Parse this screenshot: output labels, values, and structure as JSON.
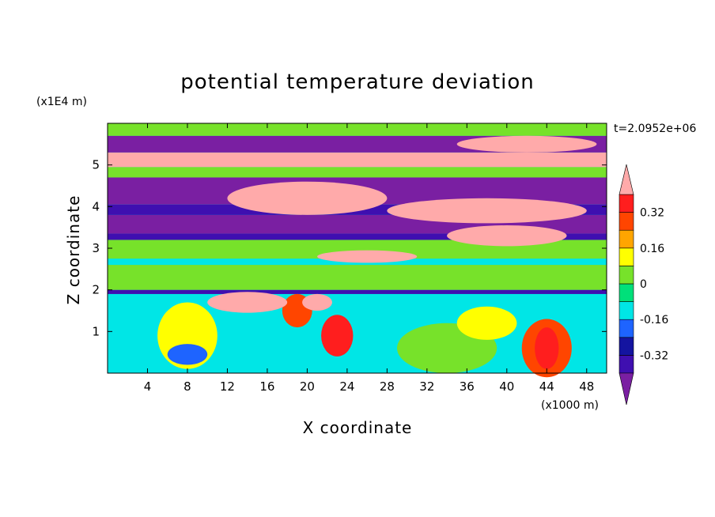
{
  "chart_data": {
    "type": "heatmap",
    "title": "potential temperature deviation",
    "time_label": "t=2.0952e+06",
    "xlabel": "X coordinate",
    "x_unit": "(x1000 m)",
    "ylabel": "Z coordinate",
    "y_unit": "(x1E4 m)",
    "xlim": [
      0,
      50
    ],
    "ylim": [
      0,
      6
    ],
    "x_ticks": [
      4,
      8,
      12,
      16,
      20,
      24,
      28,
      32,
      36,
      40,
      44,
      48
    ],
    "y_ticks": [
      1,
      2,
      3,
      4,
      5
    ],
    "colorbar": {
      "levels": [
        -0.4,
        -0.32,
        -0.24,
        -0.16,
        -0.08,
        0,
        0.08,
        0.16,
        0.24,
        0.32,
        0.4
      ],
      "tick_labels": [
        "0.32",
        "0.16",
        "0",
        "-0.16",
        "-0.32"
      ],
      "tick_values": [
        0.32,
        0.16,
        0,
        -0.16,
        -0.32
      ],
      "extend": "both",
      "colors": [
        "#7a1fa2",
        "#3f0fb0",
        "#1414a0",
        "#1e64ff",
        "#00e6e6",
        "#00e07a",
        "#77e22a",
        "#ffff00",
        "#ffa500",
        "#ff4500",
        "#ff1e1e",
        "#ffaaaa"
      ],
      "under_color": "#7a1fa2",
      "over_color": "#ffaaaa"
    },
    "background_value": -0.12,
    "bands": [
      {
        "z": [
          0.0,
          1.9
        ],
        "value": -0.12
      },
      {
        "z": [
          1.9,
          2.0
        ],
        "value": -0.36
      },
      {
        "z": [
          2.0,
          2.6
        ],
        "value": 0.06
      },
      {
        "z": [
          2.6,
          2.75
        ],
        "value": -0.12
      },
      {
        "z": [
          2.75,
          3.2
        ],
        "value": 0.02
      },
      {
        "z": [
          3.2,
          3.35
        ],
        "value": -0.36
      },
      {
        "z": [
          3.35,
          3.8
        ],
        "value": -0.42
      },
      {
        "z": [
          3.8,
          4.05
        ],
        "value": -0.36
      },
      {
        "z": [
          4.05,
          4.7
        ],
        "value": -0.42
      },
      {
        "z": [
          4.7,
          4.95
        ],
        "value": 0.06
      },
      {
        "z": [
          4.95,
          5.3
        ],
        "value": 0.45
      },
      {
        "z": [
          5.3,
          5.7
        ],
        "value": -0.42
      },
      {
        "z": [
          5.7,
          6.0
        ],
        "value": 0.02
      }
    ],
    "blobs": [
      {
        "x": 44,
        "z": 0.6,
        "rx": 2.5,
        "rz": 0.7,
        "value": 0.3
      },
      {
        "x": 44,
        "z": 0.6,
        "rx": 1.2,
        "rz": 0.5,
        "value": 0.38
      },
      {
        "x": 23,
        "z": 0.9,
        "rx": 1.6,
        "rz": 0.5,
        "value": 0.36
      },
      {
        "x": 19,
        "z": 1.5,
        "rx": 1.5,
        "rz": 0.4,
        "value": 0.3
      },
      {
        "x": 8,
        "z": 0.9,
        "rx": 3,
        "rz": 0.8,
        "value": 0.08
      },
      {
        "x": 34,
        "z": 0.6,
        "rx": 5,
        "rz": 0.6,
        "value": 0.04
      },
      {
        "x": 14,
        "z": 1.7,
        "rx": 4,
        "rz": 0.25,
        "value": 0.45
      },
      {
        "x": 21,
        "z": 1.7,
        "rx": 1.5,
        "rz": 0.2,
        "value": 0.45
      },
      {
        "x": 26,
        "z": 2.8,
        "rx": 5,
        "rz": 0.15,
        "value": 0.45
      },
      {
        "x": 40,
        "z": 3.3,
        "rx": 6,
        "rz": 0.25,
        "value": 0.45
      },
      {
        "x": 20,
        "z": 4.2,
        "rx": 8,
        "rz": 0.4,
        "value": 0.45
      },
      {
        "x": 38,
        "z": 3.9,
        "rx": 10,
        "rz": 0.3,
        "value": 0.45
      },
      {
        "x": 42,
        "z": 5.5,
        "rx": 7,
        "rz": 0.2,
        "value": 0.45
      },
      {
        "x": 8,
        "z": 0.45,
        "rx": 2,
        "rz": 0.25,
        "value": -0.2
      },
      {
        "x": 38,
        "z": 1.2,
        "rx": 3,
        "rz": 0.4,
        "value": 0.1
      }
    ]
  }
}
